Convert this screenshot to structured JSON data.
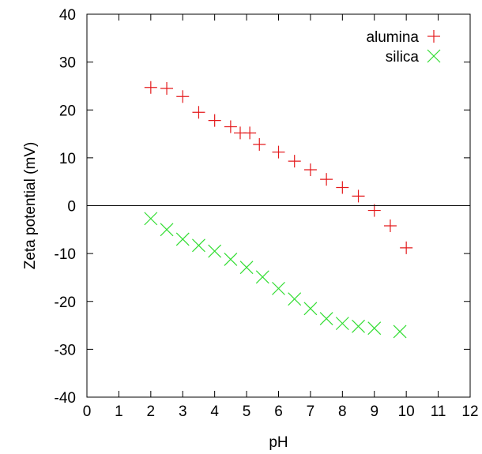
{
  "chart_data": {
    "type": "scatter",
    "title": "",
    "xlabel": "pH",
    "ylabel": "Zeta potential (mV)",
    "xlim": [
      0,
      12
    ],
    "ylim": [
      -40,
      40
    ],
    "xticks": [
      0,
      1,
      2,
      3,
      4,
      5,
      6,
      7,
      8,
      9,
      10,
      11,
      12
    ],
    "yticks": [
      -40,
      -30,
      -20,
      -10,
      0,
      10,
      20,
      30,
      40
    ],
    "grid": false,
    "zero_line": true,
    "legend_position": "top-right",
    "series": [
      {
        "name": "alumina",
        "marker": "plus",
        "color": "#e41a1c",
        "points": [
          [
            2.0,
            24.7
          ],
          [
            2.5,
            24.5
          ],
          [
            3.0,
            22.8
          ],
          [
            3.5,
            19.5
          ],
          [
            4.0,
            17.8
          ],
          [
            4.5,
            16.5
          ],
          [
            4.8,
            15.2
          ],
          [
            5.1,
            15.2
          ],
          [
            5.4,
            12.8
          ],
          [
            6.0,
            11.2
          ],
          [
            6.5,
            9.3
          ],
          [
            7.0,
            7.5
          ],
          [
            7.5,
            5.5
          ],
          [
            8.0,
            3.8
          ],
          [
            8.5,
            2.0
          ],
          [
            9.0,
            -1.0
          ],
          [
            9.5,
            -4.2
          ],
          [
            10.0,
            -8.8
          ]
        ]
      },
      {
        "name": "silica",
        "marker": "cross",
        "color": "#33dd33",
        "points": [
          [
            2.0,
            -2.7
          ],
          [
            2.5,
            -5.0
          ],
          [
            3.0,
            -7.0
          ],
          [
            3.5,
            -8.3
          ],
          [
            4.0,
            -9.5
          ],
          [
            4.5,
            -11.2
          ],
          [
            5.0,
            -12.9
          ],
          [
            5.5,
            -14.9
          ],
          [
            6.0,
            -17.3
          ],
          [
            6.5,
            -19.5
          ],
          [
            7.0,
            -21.5
          ],
          [
            7.5,
            -23.6
          ],
          [
            8.0,
            -24.6
          ],
          [
            8.5,
            -25.2
          ],
          [
            9.0,
            -25.6
          ],
          [
            9.8,
            -26.3
          ]
        ]
      }
    ]
  }
}
